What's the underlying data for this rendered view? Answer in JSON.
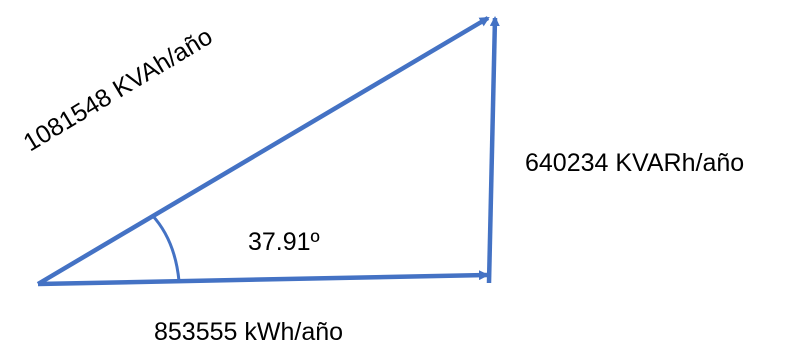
{
  "diagram": {
    "type": "power-triangle",
    "apparent_power_label": "1081548 KVAh/año",
    "reactive_power_label": "640234 KVARh/año",
    "active_power_label": "853555 kWh/año",
    "angle_label": "37.91º",
    "line_color": "#4472C4",
    "text_color": "#000000"
  }
}
